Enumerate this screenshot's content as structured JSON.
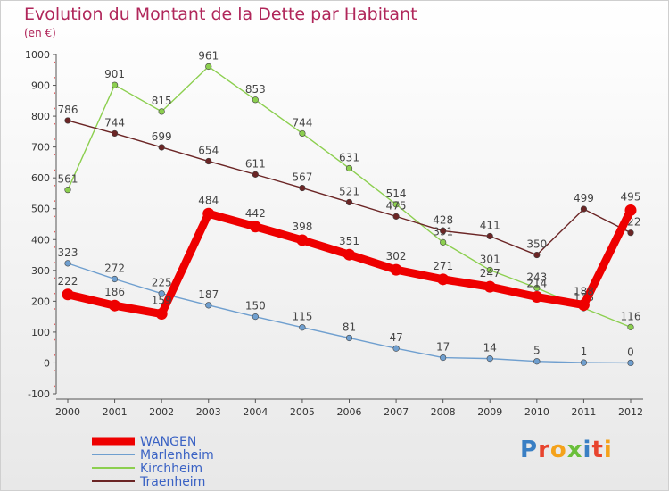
{
  "title": "Evolution du Montant de la Dette par Habitant",
  "subtitle": "(en €)",
  "brand": {
    "text": "Proxiti",
    "letters": [
      "P",
      "r",
      "o",
      "x",
      "i",
      "t",
      "i"
    ],
    "colors": [
      "#3a7fc4",
      "#e8442e",
      "#f4a21b",
      "#6abf3a",
      "#3a7fc4",
      "#e8442e",
      "#f4a21b"
    ]
  },
  "chart_data": {
    "type": "line",
    "title": "Evolution du Montant de la Dette par Habitant",
    "subtitle": "(en €)",
    "categories": [
      "2000",
      "2001",
      "2002",
      "2003",
      "2004",
      "2005",
      "2006",
      "2007",
      "2008",
      "2009",
      "2010",
      "2011",
      "2012"
    ],
    "ylim": [
      -100,
      1000
    ],
    "yticks": [
      -100,
      0,
      100,
      200,
      300,
      400,
      500,
      600,
      700,
      800,
      900,
      1000
    ],
    "grid": false,
    "legend_position": "bottom-left",
    "series": [
      {
        "name": "WANGEN",
        "color": "#ee0000",
        "highlight": true,
        "values": [
          222,
          186,
          159,
          484,
          442,
          398,
          351,
          302,
          271,
          247,
          214,
          188,
          495
        ],
        "labels": [
          "222",
          "186",
          "159",
          "484",
          "442",
          "398",
          "351",
          "302",
          "271",
          "247",
          "214",
          "188",
          "495"
        ]
      },
      {
        "name": "Marlenheim",
        "color": "#6f9fcf",
        "values": [
          323,
          272,
          225,
          187,
          150,
          115,
          81,
          47,
          17,
          14,
          5,
          1,
          0
        ],
        "labels": [
          "323",
          "272",
          "225",
          "187",
          "150",
          "115",
          "81",
          "47",
          "17",
          "14",
          "5",
          "1",
          "0"
        ]
      },
      {
        "name": "Kirchheim",
        "color": "#8ccf4f",
        "values": [
          561,
          901,
          815,
          961,
          853,
          744,
          631,
          514,
          391,
          301,
          243,
          178,
          116
        ],
        "labels": [
          "561",
          "901",
          "815",
          "961",
          "853",
          "744",
          "631",
          "514",
          "391",
          "301",
          "243",
          "178",
          "116"
        ]
      },
      {
        "name": "Traenheim",
        "color": "#6b2525",
        "values": [
          786,
          744,
          699,
          654,
          611,
          567,
          521,
          475,
          428,
          411,
          350,
          499,
          422
        ],
        "labels": [
          "786",
          "744",
          "699",
          "654",
          "611",
          "567",
          "521",
          "475",
          "428",
          "411",
          "350",
          "499",
          "422"
        ]
      }
    ]
  }
}
